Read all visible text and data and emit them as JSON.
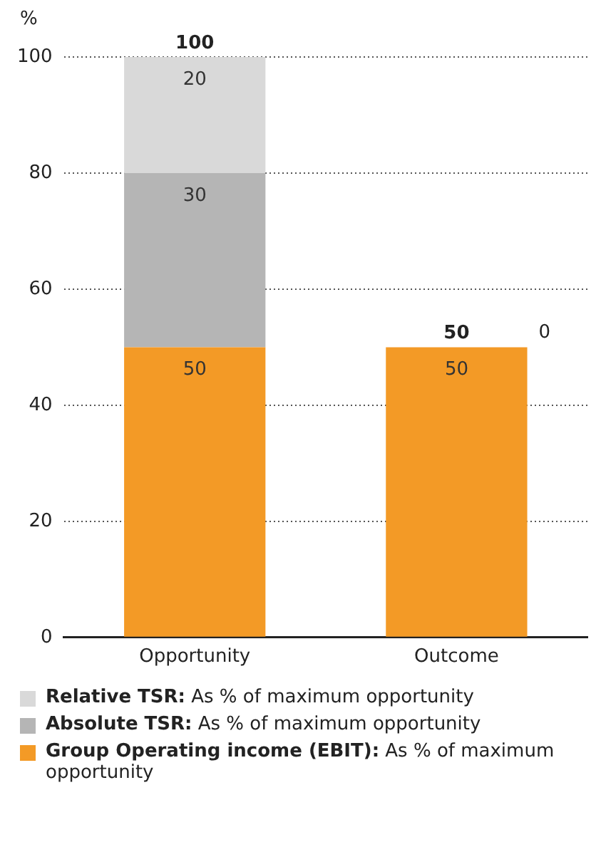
{
  "chart_data": {
    "type": "bar",
    "stacked": true,
    "ylabel": "%",
    "categories": [
      "Opportunity",
      "Outcome"
    ],
    "series": [
      {
        "name": "Group Operating income (EBIT): As % of maximum opportunity",
        "color": "#f39a26",
        "values": [
          50,
          50
        ],
        "value_labels": [
          "50",
          "50"
        ]
      },
      {
        "name": "Absolute TSR: As % of maximum opportunity",
        "color": "#b5b5b5",
        "values": [
          30,
          0
        ],
        "value_labels": [
          "30",
          null
        ]
      },
      {
        "name": "Relative TSR: As % of maximum opportunity",
        "color": "#d9d9d9",
        "values": [
          20,
          0
        ],
        "value_labels": [
          "20",
          null
        ]
      }
    ],
    "totals": [
      "100",
      "50"
    ],
    "annotations": [
      "0"
    ],
    "ylim": [
      0,
      100
    ],
    "yticks": [
      0,
      20,
      40,
      60,
      80,
      100
    ],
    "grid": "y",
    "legend": "bottom"
  }
}
